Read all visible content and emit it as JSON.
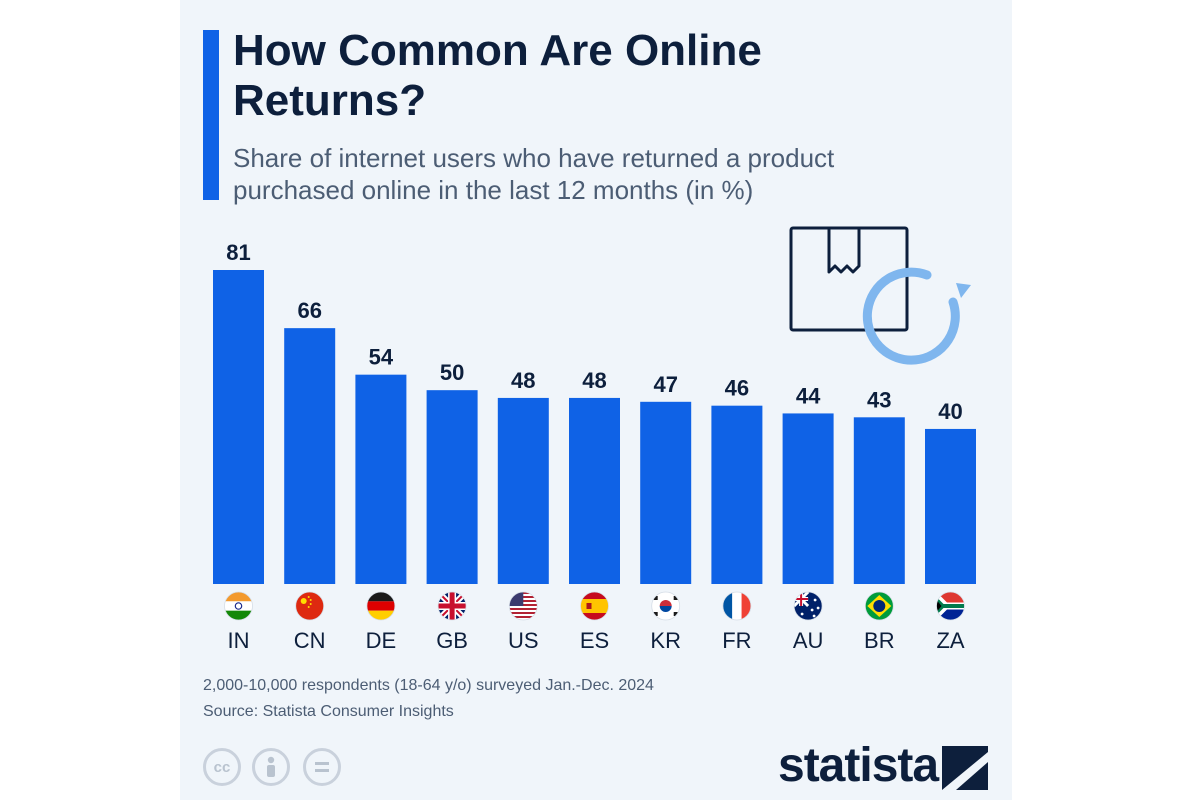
{
  "header": {
    "title": "How Common Are Online Returns?",
    "subtitle": "Share of internet users who have returned a product purchased online in the last 12 months (in %)"
  },
  "chart_data": {
    "type": "bar",
    "categories": [
      "IN",
      "CN",
      "DE",
      "GB",
      "US",
      "ES",
      "KR",
      "FR",
      "AU",
      "BR",
      "ZA"
    ],
    "values": [
      81,
      66,
      54,
      50,
      48,
      48,
      47,
      46,
      44,
      43,
      40
    ],
    "ylim": [
      0,
      81
    ],
    "grid": false,
    "legend": "none",
    "bar_color": "#0f62e6",
    "data_labels": true,
    "flag_icons": [
      "india-flag-icon",
      "china-flag-icon",
      "germany-flag-icon",
      "uk-flag-icon",
      "usa-flag-icon",
      "spain-flag-icon",
      "korea-flag-icon",
      "france-flag-icon",
      "australia-flag-icon",
      "brazil-flag-icon",
      "south-africa-flag-icon"
    ]
  },
  "footer": {
    "note": "2,000-10,000 respondents (18-64 y/o) surveyed Jan.-Dec. 2024",
    "source": "Source: Statista Consumer Insights",
    "license_icons": [
      "cc-icon",
      "attribution-icon",
      "no-derivatives-icon"
    ],
    "logo_text": "statista"
  },
  "colors": {
    "accent": "#0f62e6",
    "title": "#0d1f3c",
    "muted": "#4c5d74",
    "card_background": "#f0f5fa",
    "icon_blue": "#7fb6ee"
  }
}
